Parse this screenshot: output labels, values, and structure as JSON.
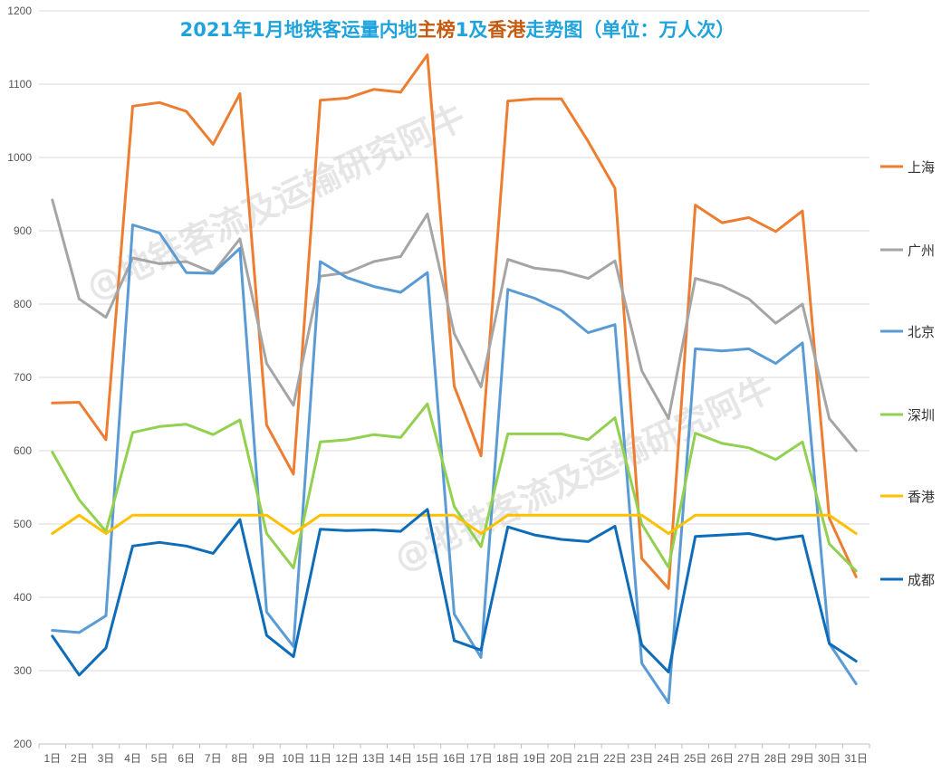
{
  "title_parts": [
    {
      "text": "2021年1月地铁客运量内地",
      "color": "#1fa3dc"
    },
    {
      "text": "主榜",
      "color": "#c55a11"
    },
    {
      "text": "1",
      "color": "#1fa3dc"
    },
    {
      "text": "及",
      "color": "#1fa3dc"
    },
    {
      "text": "香港",
      "color": "#c55a11"
    },
    {
      "text": "走势图（单位：万人次）",
      "color": "#1fa3dc"
    }
  ],
  "watermark": "@地铁客流及运输研究阿牛",
  "chart_data": {
    "type": "line",
    "title": "2021年1月地铁客运量内地主榜1及香港走势图（单位：万人次）",
    "xlabel": "",
    "ylabel": "",
    "ylim": [
      200,
      1200
    ],
    "yticks": [
      200,
      300,
      400,
      500,
      600,
      700,
      800,
      900,
      1000,
      1100,
      1200
    ],
    "grid": true,
    "legend_position": "right",
    "categories": [
      "1日",
      "2日",
      "3日",
      "4日",
      "5日",
      "6日",
      "7日",
      "8日",
      "9日",
      "10日",
      "11日",
      "12日",
      "13日",
      "14日",
      "15日",
      "16日",
      "17日",
      "18日",
      "19日",
      "20日",
      "21日",
      "22日",
      "23日",
      "24日",
      "25日",
      "26日",
      "27日",
      "28日",
      "29日",
      "30日",
      "31日"
    ],
    "series": [
      {
        "name": "上海",
        "color": "#ed7d31",
        "values": [
          665,
          666,
          615,
          1070,
          1075,
          1063,
          1018,
          1087,
          635,
          568,
          1078,
          1081,
          1093,
          1089,
          1140,
          688,
          593,
          1077,
          1080,
          1080,
          1022,
          958,
          453,
          412,
          935,
          911,
          918,
          899,
          927,
          508,
          428
        ]
      },
      {
        "name": "广州",
        "color": "#a5a5a5",
        "values": [
          942,
          807,
          782,
          863,
          855,
          858,
          843,
          889,
          719,
          662,
          838,
          843,
          858,
          865,
          923,
          760,
          687,
          861,
          849,
          845,
          835,
          859,
          709,
          644,
          835,
          825,
          807,
          774,
          800,
          644,
          600
        ]
      },
      {
        "name": "北京",
        "color": "#5b9bd5",
        "values": [
          355,
          352,
          375,
          908,
          897,
          843,
          842,
          876,
          380,
          333,
          858,
          836,
          824,
          816,
          843,
          377,
          318,
          820,
          808,
          791,
          761,
          772,
          310,
          256,
          739,
          736,
          739,
          719,
          747,
          337,
          282
        ]
      },
      {
        "name": "深圳",
        "color": "#92d050",
        "values": [
          598,
          533,
          490,
          625,
          633,
          636,
          622,
          642,
          487,
          440,
          612,
          615,
          622,
          618,
          664,
          524,
          469,
          623,
          623,
          623,
          615,
          645,
          500,
          441,
          624,
          610,
          604,
          588,
          612,
          473,
          436
        ]
      },
      {
        "name": "香港",
        "color": "#ffc000",
        "values": [
          487,
          512,
          487,
          512,
          512,
          512,
          512,
          512,
          512,
          487,
          512,
          512,
          512,
          512,
          512,
          512,
          487,
          512,
          512,
          512,
          512,
          512,
          512,
          487,
          512,
          512,
          512,
          512,
          512,
          512,
          487
        ]
      },
      {
        "name": "成都",
        "color": "#0e6cb8",
        "values": [
          347,
          294,
          331,
          470,
          475,
          470,
          460,
          506,
          348,
          319,
          493,
          491,
          492,
          490,
          520,
          341,
          328,
          496,
          485,
          479,
          476,
          497,
          335,
          298,
          483,
          485,
          487,
          479,
          484,
          337,
          313
        ]
      }
    ]
  }
}
